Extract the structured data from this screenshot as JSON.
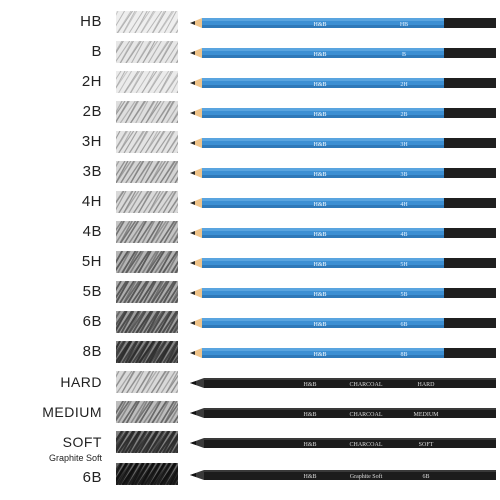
{
  "pencils": [
    {
      "grade": "HB",
      "barrel_text": "H&B",
      "end_text": "HB",
      "style": "blue",
      "shade": 0.12
    },
    {
      "grade": "B",
      "barrel_text": "H&B",
      "end_text": "B",
      "style": "blue",
      "shade": 0.18
    },
    {
      "grade": "2H",
      "barrel_text": "H&B",
      "end_text": "2H",
      "style": "blue",
      "shade": 0.14
    },
    {
      "grade": "2B",
      "barrel_text": "H&B",
      "end_text": "2B",
      "style": "blue",
      "shade": 0.26
    },
    {
      "grade": "3H",
      "barrel_text": "H&B",
      "end_text": "3H",
      "style": "blue",
      "shade": 0.22
    },
    {
      "grade": "3B",
      "barrel_text": "H&B",
      "end_text": "3B",
      "style": "blue",
      "shade": 0.34
    },
    {
      "grade": "4H",
      "barrel_text": "H&B",
      "end_text": "4H",
      "style": "blue",
      "shade": 0.3
    },
    {
      "grade": "4B",
      "barrel_text": "H&B",
      "end_text": "4B",
      "style": "blue",
      "shade": 0.45
    },
    {
      "grade": "5H",
      "barrel_text": "H&B",
      "end_text": "5H",
      "style": "blue",
      "shade": 0.55
    },
    {
      "grade": "5B",
      "barrel_text": "H&B",
      "end_text": "5B",
      "style": "blue",
      "shade": 0.6
    },
    {
      "grade": "6B",
      "barrel_text": "H&B",
      "end_text": "6B",
      "style": "blue",
      "shade": 0.68
    },
    {
      "grade": "8B",
      "barrel_text": "H&B",
      "end_text": "8B",
      "style": "blue",
      "shade": 0.8
    },
    {
      "grade": "HARD",
      "barrel_text": "H&B",
      "mid_text": "CHARCOAL",
      "end_text": "HARD",
      "style": "charcoal",
      "shade": 0.3
    },
    {
      "grade": "MEDIUM",
      "barrel_text": "H&B",
      "mid_text": "CHARCOAL",
      "end_text": "MEDIUM",
      "style": "charcoal",
      "shade": 0.5
    },
    {
      "grade": "SOFT",
      "barrel_text": "H&B",
      "mid_text": "CHARCOAL",
      "end_text": "SOFT",
      "style": "charcoal",
      "shade": 0.82
    },
    {
      "grade": "6B",
      "grade_sub": "Graphite Soft",
      "barrel_text": "H&B",
      "mid_text": "Graphite Soft",
      "end_text": "6B",
      "style": "graphite",
      "shade": 0.95
    }
  ],
  "colors": {
    "barrel_blue": "#3c8fd3",
    "barrel_blue_dark": "#2a6fae",
    "wood": "#f0c48a",
    "graphite": "#2b2b2b",
    "end_cap": "#1f1f1f",
    "charcoal_body": "#1c1c1c"
  }
}
